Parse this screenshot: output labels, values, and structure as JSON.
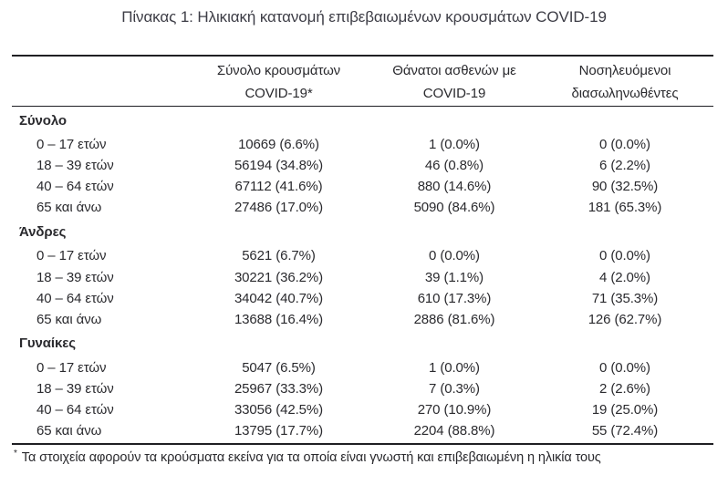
{
  "title": "Πίνακας 1: Ηλικιακή κατανομή επιβεβαιωμένων κρουσμάτων COVID-19",
  "colors": {
    "text": "#2a2a2e",
    "title": "#3d3d46",
    "rule": "#1f1f23",
    "background": "#ffffff"
  },
  "table": {
    "columns": [
      {
        "line1": "Σύνολο κρουσμάτων",
        "line2": "COVID-19*"
      },
      {
        "line1": "Θάνατοι ασθενών με",
        "line2": "COVID-19"
      },
      {
        "line1": "Νοσηλευόμενοι",
        "line2": "διασωληνωθέντες"
      }
    ],
    "sections": [
      {
        "label": "Σύνολο",
        "rows": [
          {
            "label": "0 – 17 ετών",
            "cases": "10669 (6.6%)",
            "deaths": "1 (0.0%)",
            "intubated": "0 (0.0%)"
          },
          {
            "label": "18 – 39 ετών",
            "cases": "56194 (34.8%)",
            "deaths": "46 (0.8%)",
            "intubated": "6 (2.2%)"
          },
          {
            "label": "40 – 64 ετών",
            "cases": "67112 (41.6%)",
            "deaths": "880 (14.6%)",
            "intubated": "90 (32.5%)"
          },
          {
            "label": "65 και άνω",
            "cases": "27486 (17.0%)",
            "deaths": "5090 (84.6%)",
            "intubated": "181 (65.3%)"
          }
        ]
      },
      {
        "label": "Άνδρες",
        "rows": [
          {
            "label": "0 – 17 ετών",
            "cases": "5621 (6.7%)",
            "deaths": "0 (0.0%)",
            "intubated": "0 (0.0%)"
          },
          {
            "label": "18 – 39 ετών",
            "cases": "30221 (36.2%)",
            "deaths": "39 (1.1%)",
            "intubated": "4 (2.0%)"
          },
          {
            "label": "40 – 64 ετών",
            "cases": "34042 (40.7%)",
            "deaths": "610 (17.3%)",
            "intubated": "71 (35.3%)"
          },
          {
            "label": "65 και άνω",
            "cases": "13688 (16.4%)",
            "deaths": "2886 (81.6%)",
            "intubated": "126 (62.7%)"
          }
        ]
      },
      {
        "label": "Γυναίκες",
        "rows": [
          {
            "label": "0 – 17 ετών",
            "cases": "5047 (6.5%)",
            "deaths": "1 (0.0%)",
            "intubated": "0 (0.0%)"
          },
          {
            "label": "18 – 39 ετών",
            "cases": "25967 (33.3%)",
            "deaths": "7 (0.3%)",
            "intubated": "2 (2.6%)"
          },
          {
            "label": "40 – 64 ετών",
            "cases": "33056 (42.5%)",
            "deaths": "270 (10.9%)",
            "intubated": "19 (25.0%)"
          },
          {
            "label": "65 και άνω",
            "cases": "13795 (17.7%)",
            "deaths": "2204 (88.8%)",
            "intubated": "55 (72.4%)"
          }
        ]
      }
    ]
  },
  "footnote": {
    "marker": "*",
    "text": "Τα στοιχεία αφορούν τα κρούσματα εκείνα για τα οποία είναι γνωστή και επιβεβαιωμένη η ηλικία τους"
  },
  "chart_data": {
    "type": "table",
    "title": "Πίνακας 1: Ηλικιακή κατανομή επιβεβαιωμένων κρουσμάτων COVID-19",
    "columns": [
      "Σύνολο κρουσμάτων COVID-19*",
      "Θάνατοι ασθενών με COVID-19",
      "Νοσηλευόμενοι διασωληνωθέντες"
    ],
    "groups": [
      {
        "name": "Σύνολο",
        "rows": [
          {
            "age": "0 – 17 ετών",
            "cases": 10669,
            "cases_pct": 6.6,
            "deaths": 1,
            "deaths_pct": 0.0,
            "intubated": 0,
            "intubated_pct": 0.0
          },
          {
            "age": "18 – 39 ετών",
            "cases": 56194,
            "cases_pct": 34.8,
            "deaths": 46,
            "deaths_pct": 0.8,
            "intubated": 6,
            "intubated_pct": 2.2
          },
          {
            "age": "40 – 64 ετών",
            "cases": 67112,
            "cases_pct": 41.6,
            "deaths": 880,
            "deaths_pct": 14.6,
            "intubated": 90,
            "intubated_pct": 32.5
          },
          {
            "age": "65 και άνω",
            "cases": 27486,
            "cases_pct": 17.0,
            "deaths": 5090,
            "deaths_pct": 84.6,
            "intubated": 181,
            "intubated_pct": 65.3
          }
        ]
      },
      {
        "name": "Άνδρες",
        "rows": [
          {
            "age": "0 – 17 ετών",
            "cases": 5621,
            "cases_pct": 6.7,
            "deaths": 0,
            "deaths_pct": 0.0,
            "intubated": 0,
            "intubated_pct": 0.0
          },
          {
            "age": "18 – 39 ετών",
            "cases": 30221,
            "cases_pct": 36.2,
            "deaths": 39,
            "deaths_pct": 1.1,
            "intubated": 4,
            "intubated_pct": 2.0
          },
          {
            "age": "40 – 64 ετών",
            "cases": 34042,
            "cases_pct": 40.7,
            "deaths": 610,
            "deaths_pct": 17.3,
            "intubated": 71,
            "intubated_pct": 35.3
          },
          {
            "age": "65 και άνω",
            "cases": 13688,
            "cases_pct": 16.4,
            "deaths": 2886,
            "deaths_pct": 81.6,
            "intubated": 126,
            "intubated_pct": 62.7
          }
        ]
      },
      {
        "name": "Γυναίκες",
        "rows": [
          {
            "age": "0 – 17 ετών",
            "cases": 5047,
            "cases_pct": 6.5,
            "deaths": 1,
            "deaths_pct": 0.0,
            "intubated": 0,
            "intubated_pct": 0.0
          },
          {
            "age": "18 – 39 ετών",
            "cases": 25967,
            "cases_pct": 33.3,
            "deaths": 7,
            "deaths_pct": 0.3,
            "intubated": 2,
            "intubated_pct": 2.6
          },
          {
            "age": "40 – 64 ετών",
            "cases": 33056,
            "cases_pct": 42.5,
            "deaths": 270,
            "deaths_pct": 10.9,
            "intubated": 19,
            "intubated_pct": 25.0
          },
          {
            "age": "65 και άνω",
            "cases": 13795,
            "cases_pct": 17.7,
            "deaths": 2204,
            "deaths_pct": 88.8,
            "intubated": 55,
            "intubated_pct": 72.4
          }
        ]
      }
    ]
  }
}
